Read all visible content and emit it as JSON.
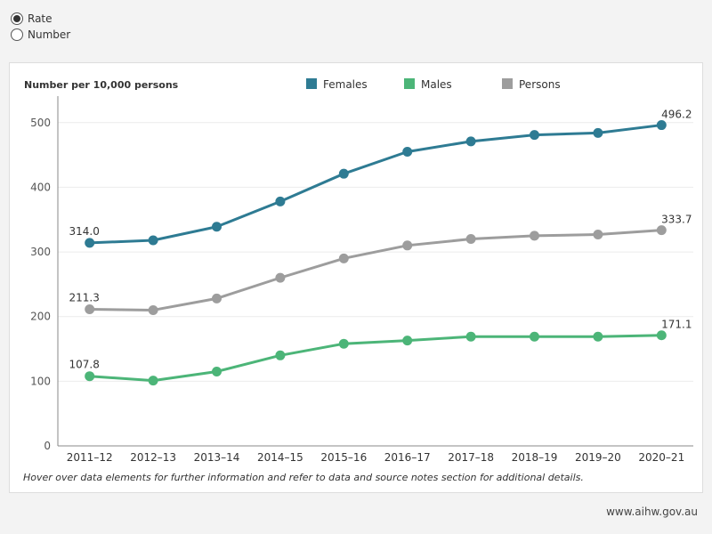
{
  "controls": {
    "options": [
      {
        "label": "Rate",
        "selected": true
      },
      {
        "label": "Number",
        "selected": false
      }
    ]
  },
  "chart_data": {
    "type": "line",
    "title": "",
    "ylabel": "Number per 10,000 persons",
    "xlabel": "",
    "categories": [
      "2011–12",
      "2012–13",
      "2013–14",
      "2014–15",
      "2015–16",
      "2016–17",
      "2017–18",
      "2018–19",
      "2019–20",
      "2020–21"
    ],
    "ylim": [
      0,
      530
    ],
    "yticks": [
      "0",
      "100",
      "200",
      "300",
      "400",
      "500"
    ],
    "grid": true,
    "legend_position": "top",
    "series": [
      {
        "name": "Females",
        "color": "#2e7b93",
        "values": [
          314.0,
          318,
          339,
          378,
          421,
          455,
          471,
          481,
          484,
          496.2
        ],
        "labels": {
          "first": "314.0",
          "last": "496.2"
        }
      },
      {
        "name": "Males",
        "color": "#4cb578",
        "values": [
          107.8,
          101,
          115,
          140,
          158,
          163,
          169,
          169,
          169,
          171.1
        ],
        "labels": {
          "first": "107.8",
          "last": "171.1"
        }
      },
      {
        "name": "Persons",
        "color": "#9d9d9d",
        "values": [
          211.3,
          210,
          228,
          260,
          290,
          310,
          320,
          325,
          327,
          333.7
        ],
        "labels": {
          "first": "211.3",
          "last": "333.7"
        }
      }
    ]
  },
  "footnote": "Hover over data elements for further information and refer to data and source notes section for additional details.",
  "source": "www.aihw.gov.au"
}
